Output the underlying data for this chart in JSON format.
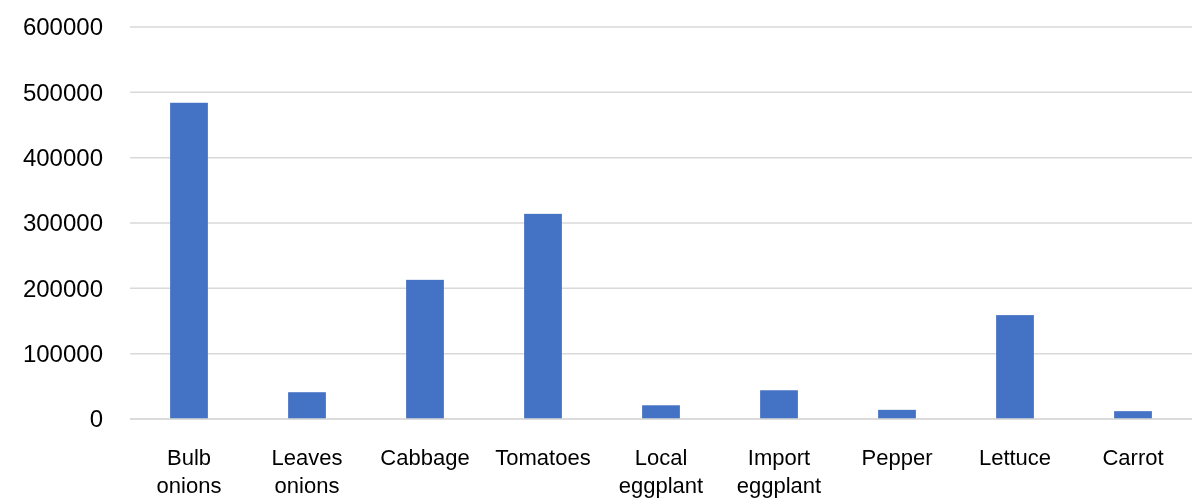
{
  "chart_data": {
    "type": "bar",
    "categories": [
      "Bulb onions",
      "Leaves onions",
      "Cabbage",
      "Tomatoes",
      "Local eggplant",
      "Import eggplant",
      "Pepper",
      "Lettuce",
      "Carrot"
    ],
    "values": [
      484000,
      41000,
      213000,
      314000,
      21000,
      44000,
      14000,
      159000,
      12000
    ],
    "color": "#4472c4",
    "ylim": [
      0,
      600000
    ],
    "yticks": [
      0,
      100000,
      200000,
      300000,
      400000,
      500000,
      600000
    ],
    "grid": "y"
  }
}
